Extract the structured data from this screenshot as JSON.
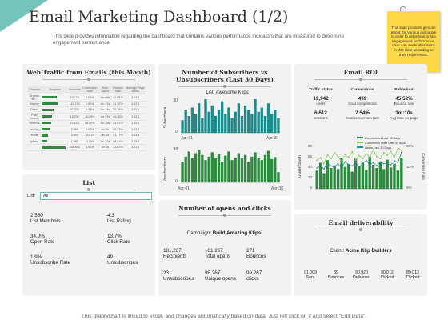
{
  "header": {
    "title": "Email Marketing Dashboard (1/2)",
    "subtitle": "This slide provides information regarding the dashboard that contains various performance indicators that are measured to determine engagement performance."
  },
  "note": "This slide provides glimpse about the various indicators in order to determine online engagement performance. User can made alterations in this slide according to their requirement.",
  "web_traffic": {
    "title": "Web Traffic from Emails (this Month)",
    "columns": [
      "Channel",
      "Progress",
      "Sessions",
      "Conversion Rate",
      "Time spent",
      "Bounce Rate",
      "Average Page views"
    ],
    "rows": [
      {
        "name": "Organic se...",
        "progress": 0.55,
        "sessions": "243.73",
        "conv": "3.05%",
        "time": "0m 49s",
        "bounce": "41.06%",
        "pv": "1.03:1"
      },
      {
        "name": "Display",
        "progress": 0.6,
        "sessions": "112.278",
        "conv": "1.90%",
        "time": "0m 37s",
        "bounce": "31.12%",
        "pv": "1.02:1"
      },
      {
        "name": "Direct",
        "progress": 0.45,
        "sessions": "47.324",
        "conv": "0.03%",
        "time": "0m 14s",
        "bounce": "30.15%",
        "pv": "1.02:1"
      },
      {
        "name": "Paid Search",
        "progress": 0.4,
        "sessions": "13.700",
        "conv": "10.08%",
        "time": "1m 07s",
        "bounce": "66.15%",
        "pv": "1.02:1"
      },
      {
        "name": "Referral",
        "progress": 0.35,
        "sessions": "10.623",
        "conv": "28.90%",
        "time": "0m 15s",
        "bounce": "54.21%",
        "pv": "1.02:1"
      },
      {
        "name": "social",
        "progress": 0.3,
        "sessions": "3.069",
        "conv": "3.07%",
        "time": "4m 0s",
        "bounce": "20.27%",
        "pv": "1.02:1"
      },
      {
        "name": "email",
        "progress": 0.25,
        "sessions": "3.549",
        "conv": "15.01%",
        "time": "0m 1s",
        "bounce": "31.77%",
        "pv": "1.03:1"
      },
      {
        "name": "(other)",
        "progress": 0.2,
        "sessions": "1.980",
        "conv": "11.09%",
        "time": "7m 31s",
        "bounce": "28.21%",
        "pv": "1.03:1"
      },
      {
        "name": "",
        "progress": 0.9,
        "sessions": "438.836",
        "conv": "3.01%",
        "time": "1m 0s",
        "bounce": "31.61%",
        "pv": "1.01:1"
      }
    ]
  },
  "subscribers": {
    "title": "Number of Subscribers vs Unsubscribers (Last 30 Days)",
    "list_label": "List: Awesome Klips",
    "top_axis_label": "Subscribers",
    "bottom_axis_label": "Unsubscribers",
    "top_ticks": [
      "80",
      "0"
    ],
    "bottom_ticks": [
      "98",
      "0"
    ],
    "x_start": "Apr-01",
    "x_end": "Apr-30",
    "subscribers_values": [
      30,
      55,
      40,
      60,
      45,
      70,
      35,
      80,
      50,
      65,
      40,
      55,
      75,
      45,
      60,
      35,
      50,
      70,
      40,
      65,
      55,
      45,
      80,
      50,
      60,
      40,
      70,
      45,
      55,
      35
    ],
    "unsubscribers_values": [
      60,
      75,
      90,
      70,
      85,
      95,
      80,
      65,
      75,
      88,
      70,
      82,
      60,
      78,
      90,
      65,
      72,
      85,
      70,
      80,
      60,
      75,
      88,
      70,
      65,
      80,
      92,
      68,
      74,
      30
    ]
  },
  "email_roi": {
    "title": "Email ROI",
    "columns": [
      "Traffic status",
      "Conversions",
      "Behaviour"
    ],
    "row1": [
      {
        "value": "19,942",
        "label": "users"
      },
      {
        "value": "499",
        "label": "Goal completions"
      },
      {
        "value": "45.52%",
        "label": "Bounce rate"
      }
    ],
    "row2": [
      {
        "value": "6,612",
        "label": "sessions"
      },
      {
        "value": "7.54%",
        "label": "Goal conversion rate"
      },
      {
        "value": "3m:10s",
        "label": "Avg time on page"
      }
    ],
    "legend": [
      "Conversions Last 30 Days",
      "Conversion Rate Last 30 days",
      "Users Last 30 Days"
    ],
    "y_left_label": "Users/Growth",
    "y_right_label": "Conversion Rate",
    "y_left_ticks": [
      "80",
      "60",
      "40",
      "20",
      "0"
    ],
    "y_right_ticks": [
      "20%",
      "10%",
      "0%"
    ],
    "bars": [
      35,
      50,
      30,
      55,
      40,
      45,
      38,
      60,
      42,
      48,
      33,
      58,
      44,
      50,
      36,
      62,
      46,
      40,
      52,
      38,
      56,
      41,
      48,
      35,
      60
    ],
    "line1": [
      55,
      60,
      48,
      65,
      58,
      70,
      62,
      52,
      66,
      60,
      72,
      55,
      64,
      58,
      68,
      60,
      75,
      62,
      58,
      70,
      64,
      72,
      60,
      78,
      74
    ],
    "line2": [
      40,
      45,
      38,
      50,
      44,
      42,
      48,
      40,
      52,
      46,
      44,
      50,
      42,
      48,
      55,
      46,
      50,
      44,
      52,
      48,
      50,
      46,
      54,
      50,
      70
    ]
  },
  "list": {
    "title": "List",
    "select_label": "List:",
    "select_value": "All",
    "stats": [
      {
        "value": "2,580",
        "label": "List Members"
      },
      {
        "value": "4.3",
        "label": "List Rating"
      },
      {
        "value": "34.0%",
        "label": "Open Rate"
      },
      {
        "value": "13.7%",
        "label": "Click Rate"
      },
      {
        "value": "1.9%",
        "label": "Unsubscribe Rate"
      },
      {
        "value": "49",
        "label": "Unsubscribes"
      }
    ]
  },
  "opens": {
    "title": "Number of opens and clicks",
    "campaign_prefix": "Campaign:",
    "campaign_name": "Build Amazing Klips!",
    "stats": [
      {
        "value": "181,267",
        "label": "Recipients"
      },
      {
        "value": "101,267",
        "label": "Total opens"
      },
      {
        "value": "271",
        "label": "Bounces"
      },
      {
        "value": "23",
        "label": "Unsubscribes"
      },
      {
        "value": "98,267",
        "label": "Unique opens"
      },
      {
        "value": "99,267",
        "label": "clicks"
      }
    ]
  },
  "deliverability": {
    "title": "Email deliverability",
    "client_prefix": "Client:",
    "client_name": "Acme Klip Builders",
    "stats": [
      {
        "value": "91.009",
        "label": "Sent"
      },
      {
        "value": "89",
        "label": "Bounces"
      },
      {
        "value": "90.920",
        "label": "Delivered"
      },
      {
        "value": "90.012",
        "label": "Clicked"
      },
      {
        "value": "89.013",
        "label": "Clicked"
      }
    ]
  },
  "footer": "This graph/chart is linked to excel, and changes automatically based on data. Just left click on it and select \"Edit Data\".",
  "colors": {
    "accent": "#5cb8b2",
    "bar": "#1f8a8a",
    "green": "#2d8a3e",
    "note": "#ffd84a"
  }
}
